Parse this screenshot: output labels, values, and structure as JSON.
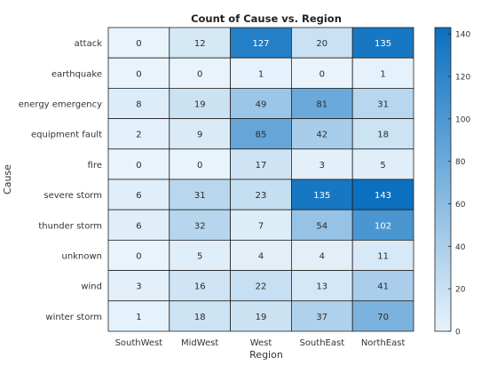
{
  "chart_data": {
    "type": "heatmap",
    "title": "Count of Cause vs. Region",
    "xlabel": "Region",
    "ylabel": "Cause",
    "x_categories": [
      "SouthWest",
      "MidWest",
      "West",
      "SouthEast",
      "NorthEast"
    ],
    "y_categories": [
      "attack",
      "earthquake",
      "energy emergency",
      "equipment fault",
      "fire",
      "severe storm",
      "thunder storm",
      "unknown",
      "wind",
      "winter storm"
    ],
    "values": [
      [
        0,
        12,
        127,
        20,
        135
      ],
      [
        0,
        0,
        1,
        0,
        1
      ],
      [
        8,
        19,
        49,
        81,
        31
      ],
      [
        2,
        9,
        85,
        42,
        18
      ],
      [
        0,
        0,
        17,
        3,
        5
      ],
      [
        6,
        31,
        23,
        135,
        143
      ],
      [
        6,
        32,
        7,
        54,
        102
      ],
      [
        0,
        5,
        4,
        4,
        11
      ],
      [
        3,
        16,
        22,
        13,
        41
      ],
      [
        1,
        18,
        19,
        37,
        70
      ]
    ],
    "colorbar": {
      "min": 0,
      "max": 143,
      "ticks": [
        0,
        20,
        40,
        60,
        80,
        100,
        120,
        140
      ]
    },
    "colors": {
      "low": "#e8f3fb",
      "high": "#0b70c0",
      "label_dark": "#2b2b2b",
      "label_light": "#ffffff",
      "grid": "#222222"
    }
  }
}
